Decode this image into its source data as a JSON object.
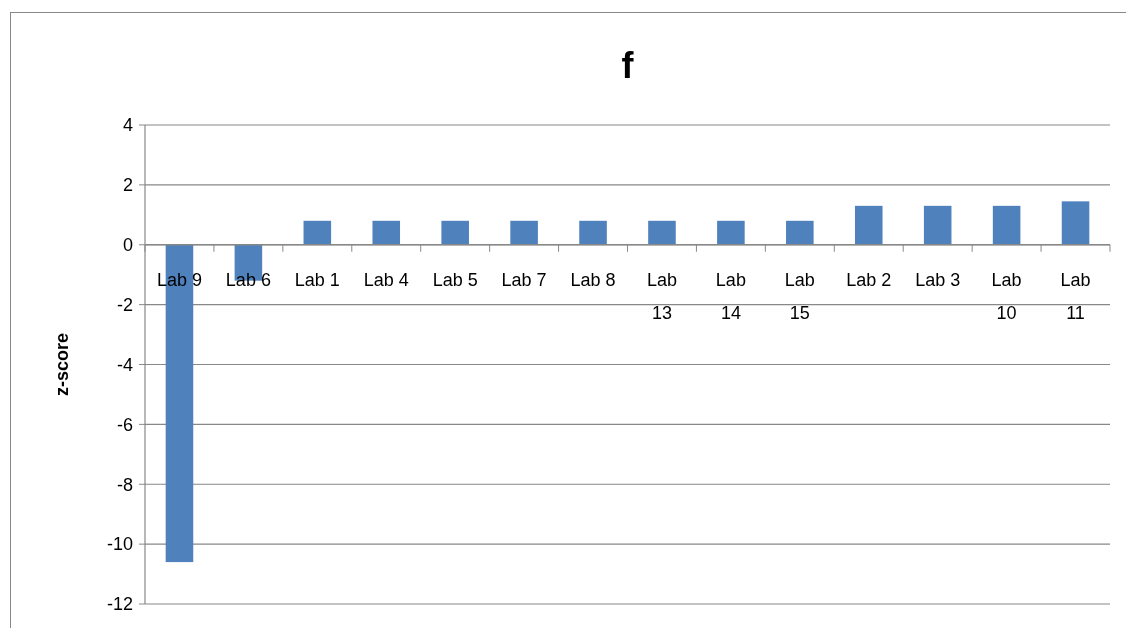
{
  "chart_data": {
    "type": "bar",
    "title": "f",
    "ylabel": "z-score",
    "categories": [
      "Lab 9",
      "Lab 6",
      "Lab 1",
      "Lab 4",
      "Lab 5",
      "Lab 7",
      "Lab 8",
      "Lab 13",
      "Lab 14",
      "Lab 15",
      "Lab 2",
      "Lab 3",
      "Lab 10",
      "Lab 11"
    ],
    "values": [
      -10.6,
      -1.2,
      0.8,
      0.8,
      0.8,
      0.8,
      0.8,
      0.8,
      0.8,
      0.8,
      1.3,
      1.3,
      1.3,
      1.45
    ],
    "color": "#4f81bd",
    "ylim": [
      -12,
      4
    ],
    "yticks": [
      -12,
      -10,
      -8,
      -6,
      -4,
      -2,
      0,
      2,
      4
    ],
    "grid": "y"
  }
}
